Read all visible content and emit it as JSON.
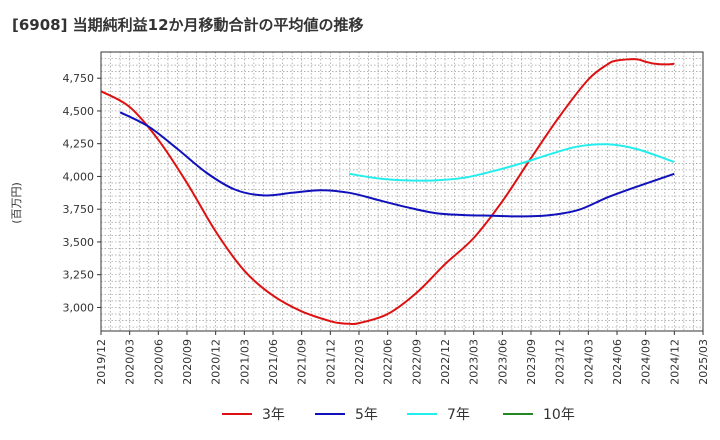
{
  "chart_data": {
    "type": "line",
    "title": "[6908]  当期純利益12か月移動合計の平均値の推移",
    "ylabel": "(百万円)",
    "xlabel": "",
    "ylim": [
      2820,
      4950
    ],
    "y_ticks": [
      3000,
      3250,
      3500,
      3750,
      4000,
      4250,
      4500,
      4750
    ],
    "y_tick_labels": [
      "3,000",
      "3,250",
      "3,500",
      "3,750",
      "4,000",
      "4,250",
      "4,500",
      "4,750"
    ],
    "x_ticks": [
      "2019/12",
      "2020/03",
      "2020/06",
      "2020/09",
      "2020/12",
      "2021/03",
      "2021/06",
      "2021/09",
      "2021/12",
      "2022/03",
      "2022/06",
      "2022/09",
      "2022/12",
      "2023/03",
      "2023/06",
      "2023/09",
      "2023/12",
      "2024/03",
      "2024/06",
      "2024/09",
      "2024/12",
      "2025/03"
    ],
    "grid": true,
    "legend_position": "bottom",
    "series": [
      {
        "name": "3年",
        "color": "#dd1111",
        "x": [
          "2019/12",
          "2020/03",
          "2020/06",
          "2020/09",
          "2020/12",
          "2021/03",
          "2021/06",
          "2021/09",
          "2021/12",
          "2022/01",
          "2022/02",
          "2022/03",
          "2022/06",
          "2022/09",
          "2022/12",
          "2023/03",
          "2023/06",
          "2023/09",
          "2023/12",
          "2024/03",
          "2024/05",
          "2024/06",
          "2024/08",
          "2024/09",
          "2024/10",
          "2024/11",
          "2024/12"
        ],
        "values": [
          4650,
          4530,
          4280,
          3950,
          3580,
          3280,
          3090,
          2970,
          2895,
          2880,
          2875,
          2880,
          2950,
          3110,
          3330,
          3530,
          3810,
          4140,
          4460,
          4740,
          4855,
          4885,
          4895,
          4875,
          4860,
          4855,
          4860
        ]
      },
      {
        "name": "5年",
        "color": "#1111bb",
        "x": [
          "2020/02",
          "2020/05",
          "2020/08",
          "2020/11",
          "2021/02",
          "2021/05",
          "2021/08",
          "2021/11",
          "2022/02",
          "2022/05",
          "2022/08",
          "2022/11",
          "2023/02",
          "2023/05",
          "2023/08",
          "2023/11",
          "2024/02",
          "2024/05",
          "2024/08",
          "2024/12"
        ],
        "values": [
          4490,
          4380,
          4210,
          4030,
          3900,
          3855,
          3875,
          3895,
          3875,
          3820,
          3765,
          3720,
          3705,
          3700,
          3695,
          3705,
          3745,
          3840,
          3920,
          4020
        ]
      },
      {
        "name": "7年",
        "color": "#22eeee",
        "x": [
          "2022/02",
          "2022/05",
          "2022/08",
          "2022/11",
          "2023/02",
          "2023/05",
          "2023/08",
          "2023/11",
          "2024/02",
          "2024/05",
          "2024/08",
          "2024/12"
        ],
        "values": [
          4020,
          3985,
          3970,
          3970,
          3990,
          4040,
          4100,
          4170,
          4230,
          4245,
          4210,
          4110
        ]
      },
      {
        "name": "10年",
        "color": "#228822",
        "x": [],
        "values": []
      }
    ]
  }
}
